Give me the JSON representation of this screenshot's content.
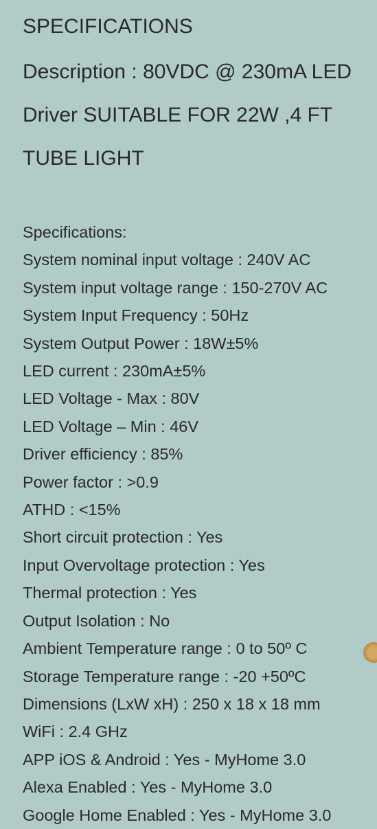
{
  "heading": "SPECIFICATIONS",
  "description": "Description : 80VDC @ 230mA LED Driver SUITABLE FOR 22W ,4 FT TUBE LIGHT",
  "specs_label": "Specifications:",
  "specs": [
    {
      "label": "System nominal input voltage",
      "value": "240V AC"
    },
    {
      "label": "System input voltage range",
      "value": "150-270V AC"
    },
    {
      "label": "System Input Frequency",
      "value": "50Hz"
    },
    {
      "label": "System Output Power",
      "value": "18W±5%"
    },
    {
      "label": "LED current",
      "value": "230mA±5%"
    },
    {
      "label": "LED Voltage - Max",
      "value": "80V"
    },
    {
      "label": "LED Voltage – Min",
      "value": "46V"
    },
    {
      "label": "Driver efficiency",
      "value": "85%"
    },
    {
      "label": "Power factor",
      "value": ">0.9"
    },
    {
      "label": "ATHD",
      "value": "<15%"
    },
    {
      "label": "Short circuit protection",
      "value": "Yes"
    },
    {
      "label": "Input Overvoltage protection",
      "value": "Yes"
    },
    {
      "label": "Thermal protection",
      "value": "Yes"
    },
    {
      "label": "Output Isolation",
      "value": "No"
    },
    {
      "label": "Ambient Temperature range",
      "value": "0 to 50º C"
    },
    {
      "label": "Storage Temperature range",
      "value": "-20 +50ºC"
    },
    {
      "label": "Dimensions (LxW xH)",
      "value": "250 x 18 x 18 mm"
    },
    {
      "label": "WiFi",
      "value": "2.4 GHz"
    },
    {
      "label": "APP iOS & Android",
      "value": "Yes - MyHome 3.0"
    },
    {
      "label": "Alexa Enabled",
      "value": "Yes - MyHome 3.0"
    },
    {
      "label": "Google Home Enabled",
      "value": "Yes - MyHome 3.0"
    }
  ],
  "colors": {
    "background": "#b0cbc8",
    "text": "#2a2a2a"
  },
  "typography": {
    "heading_fontsize": 30,
    "body_fontsize": 23.5,
    "font_family": "Arial"
  }
}
